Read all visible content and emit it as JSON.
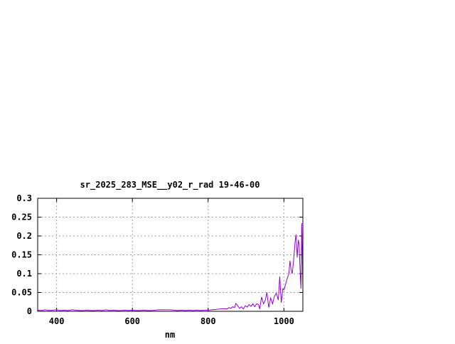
{
  "chart_data": {
    "type": "line",
    "title": "sr_2025_283_MSE__y02_r_rad 19-46-00",
    "xlabel": "nm",
    "ylabel": "",
    "xlim": [
      350,
      1050
    ],
    "ylim": [
      0,
      0.3
    ],
    "xticks": [
      400,
      600,
      800,
      1000
    ],
    "xtick_labels": [
      "400",
      "600",
      "800",
      "1000"
    ],
    "yticks": [
      0,
      0.05,
      0.1,
      0.15,
      0.2,
      0.25,
      0.3
    ],
    "ytick_labels": [
      "0",
      "0.05",
      "0.1",
      "0.15",
      "0.2",
      "0.25",
      "0.3"
    ],
    "grid": true,
    "series": [
      {
        "color": "#9400d3",
        "x": [
          350,
          360,
          370,
          380,
          390,
          400,
          410,
          420,
          430,
          440,
          450,
          460,
          470,
          480,
          490,
          500,
          510,
          520,
          530,
          540,
          550,
          560,
          570,
          580,
          590,
          600,
          610,
          620,
          630,
          640,
          650,
          660,
          670,
          680,
          690,
          700,
          710,
          720,
          730,
          740,
          750,
          760,
          770,
          780,
          790,
          800,
          810,
          820,
          830,
          840,
          850,
          855,
          860,
          865,
          870,
          873,
          878,
          883,
          888,
          893,
          898,
          903,
          908,
          913,
          918,
          923,
          928,
          933,
          936,
          941,
          946,
          951,
          955,
          960,
          965,
          970,
          975,
          980,
          985,
          989,
          993,
          997,
          1000,
          1004,
          1008,
          1013,
          1016,
          1019,
          1022,
          1026,
          1030,
          1032,
          1035,
          1038,
          1040,
          1043,
          1045,
          1047,
          1050
        ],
        "y": [
          0.003,
          0.002,
          0.004,
          0.002,
          0.003,
          0.004,
          0.002,
          0.003,
          0.002,
          0.004,
          0.003,
          0.002,
          0.002,
          0.003,
          0.002,
          0.002,
          0.003,
          0.002,
          0.004,
          0.002,
          0.003,
          0.002,
          0.002,
          0.003,
          0.002,
          0.003,
          0.002,
          0.002,
          0.003,
          0.002,
          0.002,
          0.003,
          0.004,
          0.004,
          0.004,
          0.004,
          0.003,
          0.002,
          0.003,
          0.002,
          0.003,
          0.002,
          0.003,
          0.002,
          0.003,
          0.003,
          0.004,
          0.005,
          0.006,
          0.007,
          0.006,
          0.01,
          0.008,
          0.012,
          0.01,
          0.021,
          0.015,
          0.008,
          0.012,
          0.006,
          0.015,
          0.011,
          0.018,
          0.013,
          0.02,
          0.012,
          0.02,
          0.018,
          0.006,
          0.038,
          0.02,
          0.03,
          0.05,
          0.01,
          0.035,
          0.02,
          0.04,
          0.048,
          0.03,
          0.092,
          0.023,
          0.06,
          0.057,
          0.07,
          0.085,
          0.1,
          0.134,
          0.11,
          0.1,
          0.14,
          0.189,
          0.204,
          0.143,
          0.19,
          0.178,
          0.1,
          0.06,
          0.234,
          0.06
        ]
      }
    ]
  }
}
